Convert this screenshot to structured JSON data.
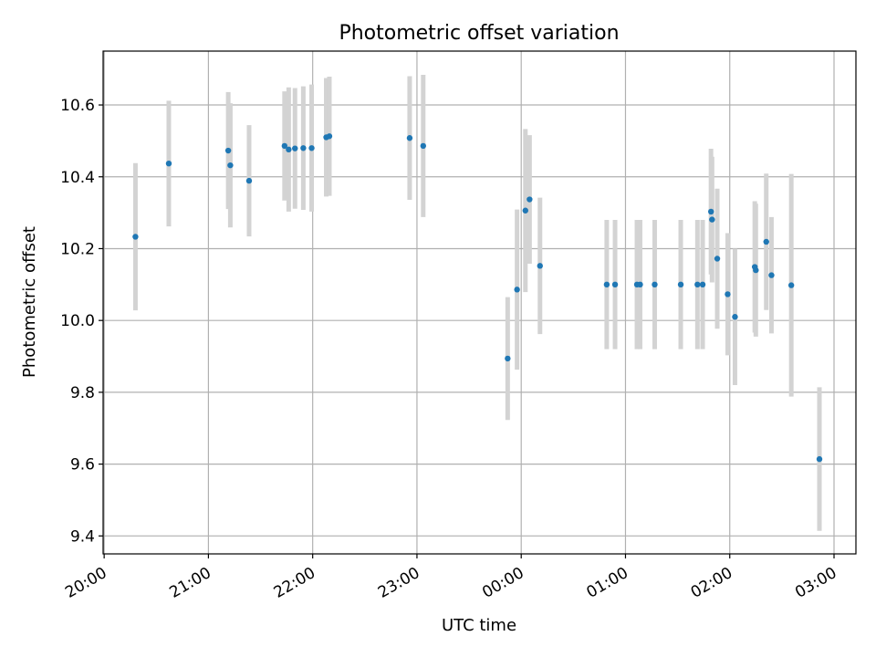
{
  "chart_data": {
    "type": "scatter",
    "title": "Photometric offset variation",
    "xlabel": "UTC time",
    "ylabel": "Photometric offset",
    "x_unit": "hours after 20:00 UTC",
    "xlim": [
      -0.01,
      7.21
    ],
    "ylim": [
      9.35,
      10.75
    ],
    "grid": true,
    "x_ticks": [
      {
        "value": 0,
        "label": "20:00"
      },
      {
        "value": 1,
        "label": "21:00"
      },
      {
        "value": 2,
        "label": "22:00"
      },
      {
        "value": 3,
        "label": "23:00"
      },
      {
        "value": 4,
        "label": "00:00"
      },
      {
        "value": 5,
        "label": "01:00"
      },
      {
        "value": 6,
        "label": "02:00"
      },
      {
        "value": 7,
        "label": "03:00"
      }
    ],
    "y_ticks": [
      {
        "value": 9.4,
        "label": "9.4"
      },
      {
        "value": 9.6,
        "label": "9.6"
      },
      {
        "value": 9.8,
        "label": "9.8"
      },
      {
        "value": 10.0,
        "label": "10.0"
      },
      {
        "value": 10.2,
        "label": "10.2"
      },
      {
        "value": 10.4,
        "label": "10.4"
      },
      {
        "value": 10.6,
        "label": "10.6"
      }
    ],
    "points": [
      {
        "x": 0.3,
        "y": 10.233,
        "err": 0.205
      },
      {
        "x": 0.62,
        "y": 10.437,
        "err": 0.175
      },
      {
        "x": 1.19,
        "y": 10.473,
        "err": 0.163
      },
      {
        "x": 1.21,
        "y": 10.432,
        "err": 0.173
      },
      {
        "x": 1.39,
        "y": 10.389,
        "err": 0.155
      },
      {
        "x": 1.73,
        "y": 10.486,
        "err": 0.152
      },
      {
        "x": 1.77,
        "y": 10.476,
        "err": 0.173
      },
      {
        "x": 1.83,
        "y": 10.479,
        "err": 0.168
      },
      {
        "x": 1.91,
        "y": 10.48,
        "err": 0.172
      },
      {
        "x": 1.99,
        "y": 10.48,
        "err": 0.177
      },
      {
        "x": 2.13,
        "y": 10.51,
        "err": 0.165
      },
      {
        "x": 2.16,
        "y": 10.513,
        "err": 0.166
      },
      {
        "x": 2.93,
        "y": 10.508,
        "err": 0.172
      },
      {
        "x": 3.06,
        "y": 10.486,
        "err": 0.198
      },
      {
        "x": 3.87,
        "y": 9.894,
        "err": 0.171
      },
      {
        "x": 3.96,
        "y": 10.086,
        "err": 0.223
      },
      {
        "x": 4.04,
        "y": 10.306,
        "err": 0.227
      },
      {
        "x": 4.08,
        "y": 10.337,
        "err": 0.179
      },
      {
        "x": 4.18,
        "y": 10.152,
        "err": 0.19
      },
      {
        "x": 4.82,
        "y": 10.1,
        "err": 0.18
      },
      {
        "x": 4.9,
        "y": 10.1,
        "err": 0.18
      },
      {
        "x": 5.11,
        "y": 10.1,
        "err": 0.18
      },
      {
        "x": 5.14,
        "y": 10.1,
        "err": 0.18
      },
      {
        "x": 5.28,
        "y": 10.1,
        "err": 0.18
      },
      {
        "x": 5.53,
        "y": 10.1,
        "err": 0.18
      },
      {
        "x": 5.69,
        "y": 10.1,
        "err": 0.18
      },
      {
        "x": 5.74,
        "y": 10.1,
        "err": 0.18
      },
      {
        "x": 5.82,
        "y": 10.303,
        "err": 0.175
      },
      {
        "x": 5.83,
        "y": 10.281,
        "err": 0.175
      },
      {
        "x": 5.88,
        "y": 10.172,
        "err": 0.195
      },
      {
        "x": 5.98,
        "y": 10.073,
        "err": 0.17
      },
      {
        "x": 6.05,
        "y": 10.01,
        "err": 0.19
      },
      {
        "x": 6.24,
        "y": 10.149,
        "err": 0.183
      },
      {
        "x": 6.25,
        "y": 10.14,
        "err": 0.185
      },
      {
        "x": 6.35,
        "y": 10.219,
        "err": 0.19
      },
      {
        "x": 6.4,
        "y": 10.126,
        "err": 0.162
      },
      {
        "x": 6.59,
        "y": 10.098,
        "err": 0.31
      },
      {
        "x": 6.86,
        "y": 9.614,
        "err": 0.2
      }
    ]
  }
}
